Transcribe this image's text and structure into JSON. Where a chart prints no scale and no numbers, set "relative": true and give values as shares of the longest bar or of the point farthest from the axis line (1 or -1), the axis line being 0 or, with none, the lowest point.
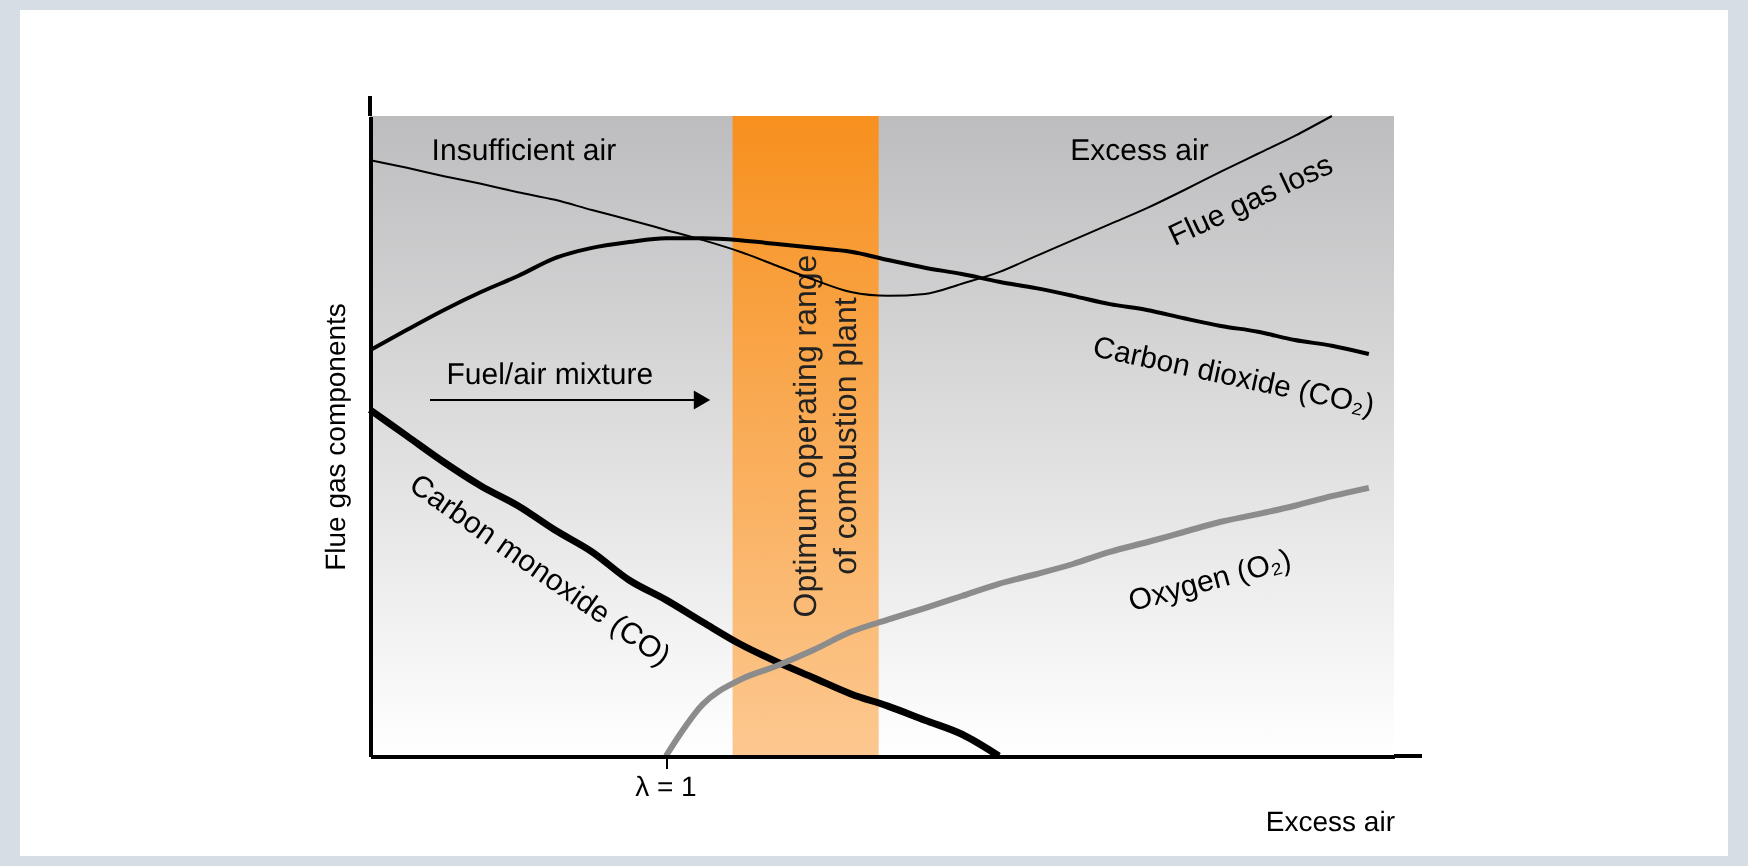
{
  "chart_data": {
    "type": "line",
    "relative": true,
    "xlabel": "Excess air",
    "ylabel": "Flue gas components",
    "categories": [
      null,
      null,
      null,
      null,
      null,
      null,
      null,
      null,
      null,
      null,
      null,
      null,
      null,
      null,
      null,
      null,
      null,
      null,
      null,
      null,
      null,
      null,
      null,
      null,
      null,
      null,
      null,
      null
    ],
    "series": [
      {
        "name": "Flue gas loss",
        "color": "#000000",
        "values": [
          0.931,
          0.919,
          0.906,
          0.894,
          0.881,
          0.869,
          0.853,
          0.838,
          0.822,
          0.806,
          0.788,
          0.766,
          0.744,
          0.725,
          0.719,
          0.722,
          0.738,
          0.756,
          0.781,
          0.806,
          0.831,
          0.856,
          0.884,
          0.913,
          0.941,
          0.969,
          1.0,
          null
        ]
      },
      {
        "name": "Carbon dioxide (CO₂)",
        "color": "#000000",
        "values": [
          0.634,
          0.666,
          0.697,
          0.725,
          0.75,
          0.778,
          0.794,
          0.803,
          0.809,
          0.809,
          0.806,
          0.8,
          0.794,
          0.788,
          0.775,
          0.763,
          0.753,
          0.741,
          0.731,
          0.719,
          0.706,
          0.697,
          0.684,
          0.672,
          0.663,
          0.65,
          0.641,
          0.628
        ]
      },
      {
        "name": "Carbon monoxide (CO)",
        "color": "#000000",
        "values": [
          0.541,
          0.5,
          0.459,
          0.422,
          0.391,
          0.353,
          0.319,
          0.275,
          0.244,
          0.209,
          0.175,
          0.147,
          0.122,
          0.097,
          0.078,
          0.056,
          0.034,
          0,
          null,
          null,
          null,
          null,
          null,
          null,
          null,
          null,
          null,
          null
        ]
      },
      {
        "name": "Oxygen (O₂)",
        "color": "#8c8c8c",
        "values": [
          null,
          null,
          null,
          null,
          null,
          null,
          null,
          null,
          0,
          0.081,
          0.119,
          0.141,
          0.166,
          0.194,
          0.213,
          0.231,
          0.25,
          0.269,
          0.284,
          0.3,
          0.319,
          0.334,
          0.35,
          0.366,
          0.378,
          0.391,
          0.406,
          0.419
        ]
      }
    ],
    "annotations": [
      "Insufficient air",
      "Excess air",
      "Fuel/air mixture",
      "Optimum operating range of combustion plant",
      "λ = 1"
    ],
    "marker": "none",
    "line_style": "solid"
  }
}
